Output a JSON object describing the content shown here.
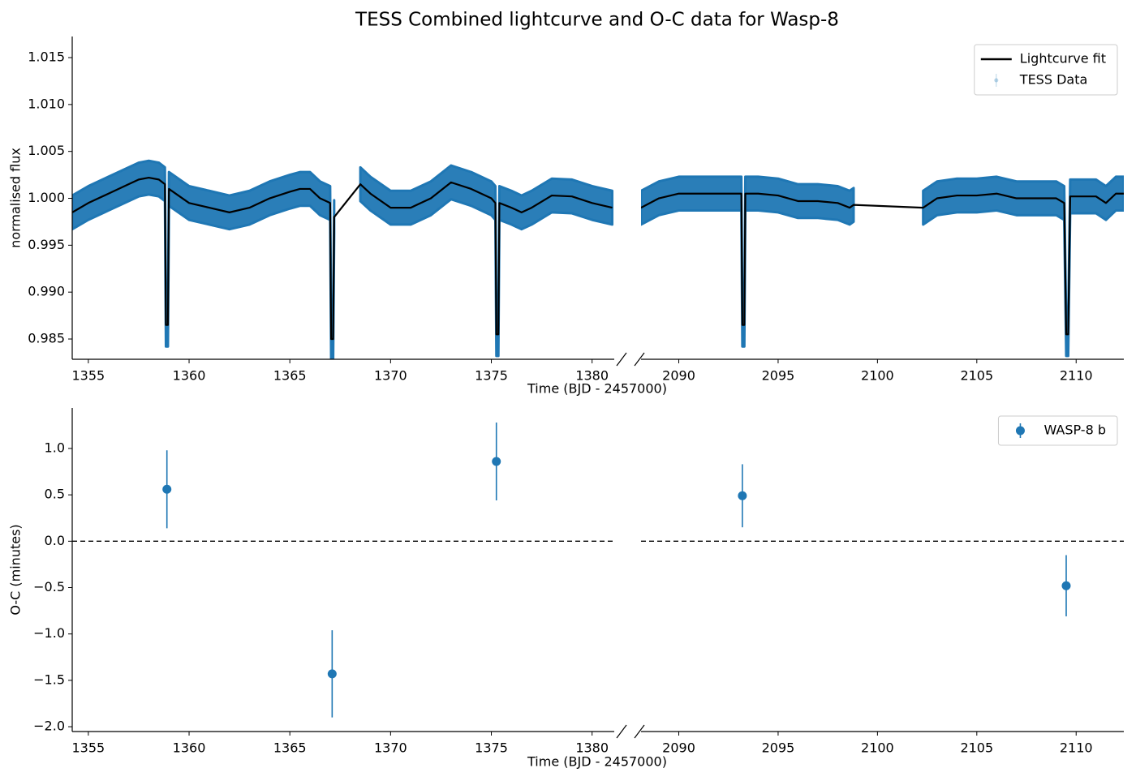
{
  "chart_data": [
    {
      "type": "line",
      "title": "TESS Combined lightcurve and O-C data for Wasp-8",
      "xlabel": "Time (BJD - 2457000)",
      "ylabel": "normalised flux",
      "xlim": [
        [
          1354.2,
          1381.1
        ],
        [
          2088.1,
          2112.4
        ]
      ],
      "xticks": [
        1355,
        1360,
        1365,
        1370,
        1375,
        1380,
        2090,
        2095,
        2100,
        2105,
        2110
      ],
      "ylim": [
        0.98284,
        1.01725
      ],
      "yticks": [
        0.985,
        {
          "value": 0.99,
          "label": "0.990"
        },
        0.995,
        {
          "value": 1,
          "label": "1.000"
        },
        1.005,
        {
          "value": 1.01,
          "label": "1.010"
        },
        1.015
      ],
      "legend": "upper right",
      "series": [
        {
          "name": "Lightcurve fit",
          "color": "#000000",
          "style": "line",
          "x": [
            1354.2,
            1355,
            1356,
            1357,
            1357.5,
            1358,
            1358.5,
            1358.8,
            1358.85,
            1358.95,
            1359,
            1360,
            1361,
            1362,
            1363,
            1364,
            1365,
            1365.5,
            1366,
            1366.5,
            1367,
            1367.05,
            1367.15,
            1367.2,
            1368.5,
            1369,
            1370,
            1371,
            1372,
            1373,
            1374,
            1375,
            1375.2,
            1375.25,
            1375.35,
            1375.4,
            1376,
            1376.5,
            1377,
            1378,
            1379,
            1380,
            1381,
            2088.1,
            2089,
            2090,
            2091,
            2092,
            2093,
            2093.15,
            2093.2,
            2093.3,
            2093.35,
            2094,
            2095,
            2096,
            2097,
            2098,
            2098.6,
            2098.8,
            2102.3,
            2103,
            2104,
            2105,
            2106,
            2107,
            2108,
            2109,
            2109.4,
            2109.5,
            2109.6,
            2109.7,
            2110,
            2111,
            2111.5,
            2112,
            2112.4
          ],
          "values": [
            0.9985,
            0.9995,
            1.0005,
            1.0015,
            1.002,
            1.0022,
            1.002,
            1.0015,
            0.9865,
            0.9865,
            1.001,
            0.9995,
            0.999,
            0.9985,
            0.999,
            1.0,
            1.0007,
            1.001,
            1.001,
            1.0,
            0.9995,
            0.985,
            0.985,
            0.998,
            1.0015,
            1.0005,
            0.999,
            0.999,
            1.0,
            1.0017,
            1.001,
            1.0,
            0.9995,
            0.9855,
            0.9855,
            0.9995,
            0.999,
            0.9985,
            0.999,
            1.0003,
            1.0002,
            0.9995,
            0.999,
            0.999,
            1.0,
            1.0005,
            1.0005,
            1.0005,
            1.0005,
            1.0005,
            0.9865,
            0.9865,
            1.0005,
            1.0005,
            1.0003,
            0.9997,
            0.9997,
            0.9995,
            0.999,
            0.9993,
            0.999,
            1.0,
            1.0003,
            1.0003,
            1.0005,
            1.0,
            1.0,
            1.0,
            0.9995,
            0.9855,
            0.9855,
            1.0002,
            1.0002,
            1.0002,
            0.9995,
            1.0005,
            1.0005
          ]
        },
        {
          "name": "TESS Data",
          "color": "#1f77b4",
          "style": "band",
          "x": [
            1354.2,
            1355,
            1356,
            1357,
            1357.5,
            1358,
            1358.5,
            1358.8,
            1358.85,
            1358.95,
            1359,
            1360,
            1361,
            1362,
            1363,
            1364,
            1365,
            1365.5,
            1366,
            1366.5,
            1367,
            1367.05,
            1367.15,
            1367.2,
            1367.7,
            1368.5,
            1369,
            1370,
            1371,
            1372,
            1373,
            1374,
            1375,
            1375.2,
            1375.25,
            1375.35,
            1375.4,
            1376,
            1376.5,
            1377,
            1378,
            1379,
            1380,
            1381,
            2088.1,
            2089,
            2090,
            2091,
            2092,
            2093,
            2093.15,
            2093.2,
            2093.3,
            2093.35,
            2094,
            2095,
            2096,
            2097,
            2098,
            2098.6,
            2098.8,
            2100.5,
            2102.3,
            2103,
            2104,
            2105,
            2106,
            2107,
            2108,
            2109,
            2109.4,
            2109.5,
            2109.6,
            2109.7,
            2110,
            2111,
            2111.5,
            2112,
            2112.4
          ],
          "values": [
            0.9985,
            0.9995,
            1.0005,
            1.0015,
            1.002,
            1.0022,
            1.002,
            1.0015,
            0.986,
            0.986,
            1.001,
            0.9995,
            0.999,
            0.9985,
            0.999,
            1.0,
            1.0007,
            1.001,
            1.001,
            1.0,
            0.9995,
            0.9845,
            0.9845,
            0.998,
            null,
            1.0015,
            1.0005,
            0.999,
            0.999,
            1.0,
            1.0017,
            1.001,
            1.0,
            0.9995,
            0.985,
            0.985,
            0.9995,
            0.999,
            0.9985,
            0.999,
            1.0003,
            1.0002,
            0.9995,
            0.999,
            0.999,
            1.0,
            1.0005,
            1.0005,
            1.0005,
            1.0005,
            1.0005,
            0.986,
            0.986,
            1.0005,
            1.0005,
            1.0003,
            0.9997,
            0.9997,
            0.9995,
            0.999,
            0.9993,
            null,
            0.999,
            1.0,
            1.0003,
            1.0003,
            1.0005,
            1.0,
            1.0,
            1.0,
            0.9995,
            0.985,
            0.985,
            1.0002,
            1.0002,
            1.0002,
            0.9995,
            1.0005,
            1.0005
          ]
        }
      ]
    },
    {
      "type": "scatter",
      "xlabel": "Time (BJD - 2457000)",
      "ylabel": "O-C (minutes)",
      "xlim": [
        [
          1354.2,
          1381.1
        ],
        [
          2088.1,
          2112.4
        ]
      ],
      "xticks": [
        1355,
        1360,
        1365,
        1370,
        1375,
        1380,
        2090,
        2095,
        2100,
        2105,
        2110
      ],
      "ylim": [
        -2.052,
        1.437
      ],
      "yticks": [
        {
          "value": -2,
          "label": "−2.0"
        },
        {
          "value": -1.5,
          "label": "−1.5"
        },
        {
          "value": -1,
          "label": "−1.0"
        },
        {
          "value": -0.5,
          "label": "−0.5"
        },
        {
          "value": 0,
          "label": "0.0"
        },
        {
          "value": 0.5,
          "label": "0.5"
        },
        {
          "value": 1,
          "label": "1.0"
        }
      ],
      "hline": 0,
      "legend": "upper right",
      "series": [
        {
          "name": "WASP-8 b",
          "color": "#1f77b4",
          "x": [
            1358.9,
            1367.1,
            1375.25,
            2093.2,
            2109.5
          ],
          "values": [
            0.56,
            -1.43,
            0.86,
            0.49,
            -0.48
          ],
          "errors": [
            0.42,
            0.47,
            0.42,
            0.34,
            0.33
          ]
        }
      ]
    }
  ]
}
